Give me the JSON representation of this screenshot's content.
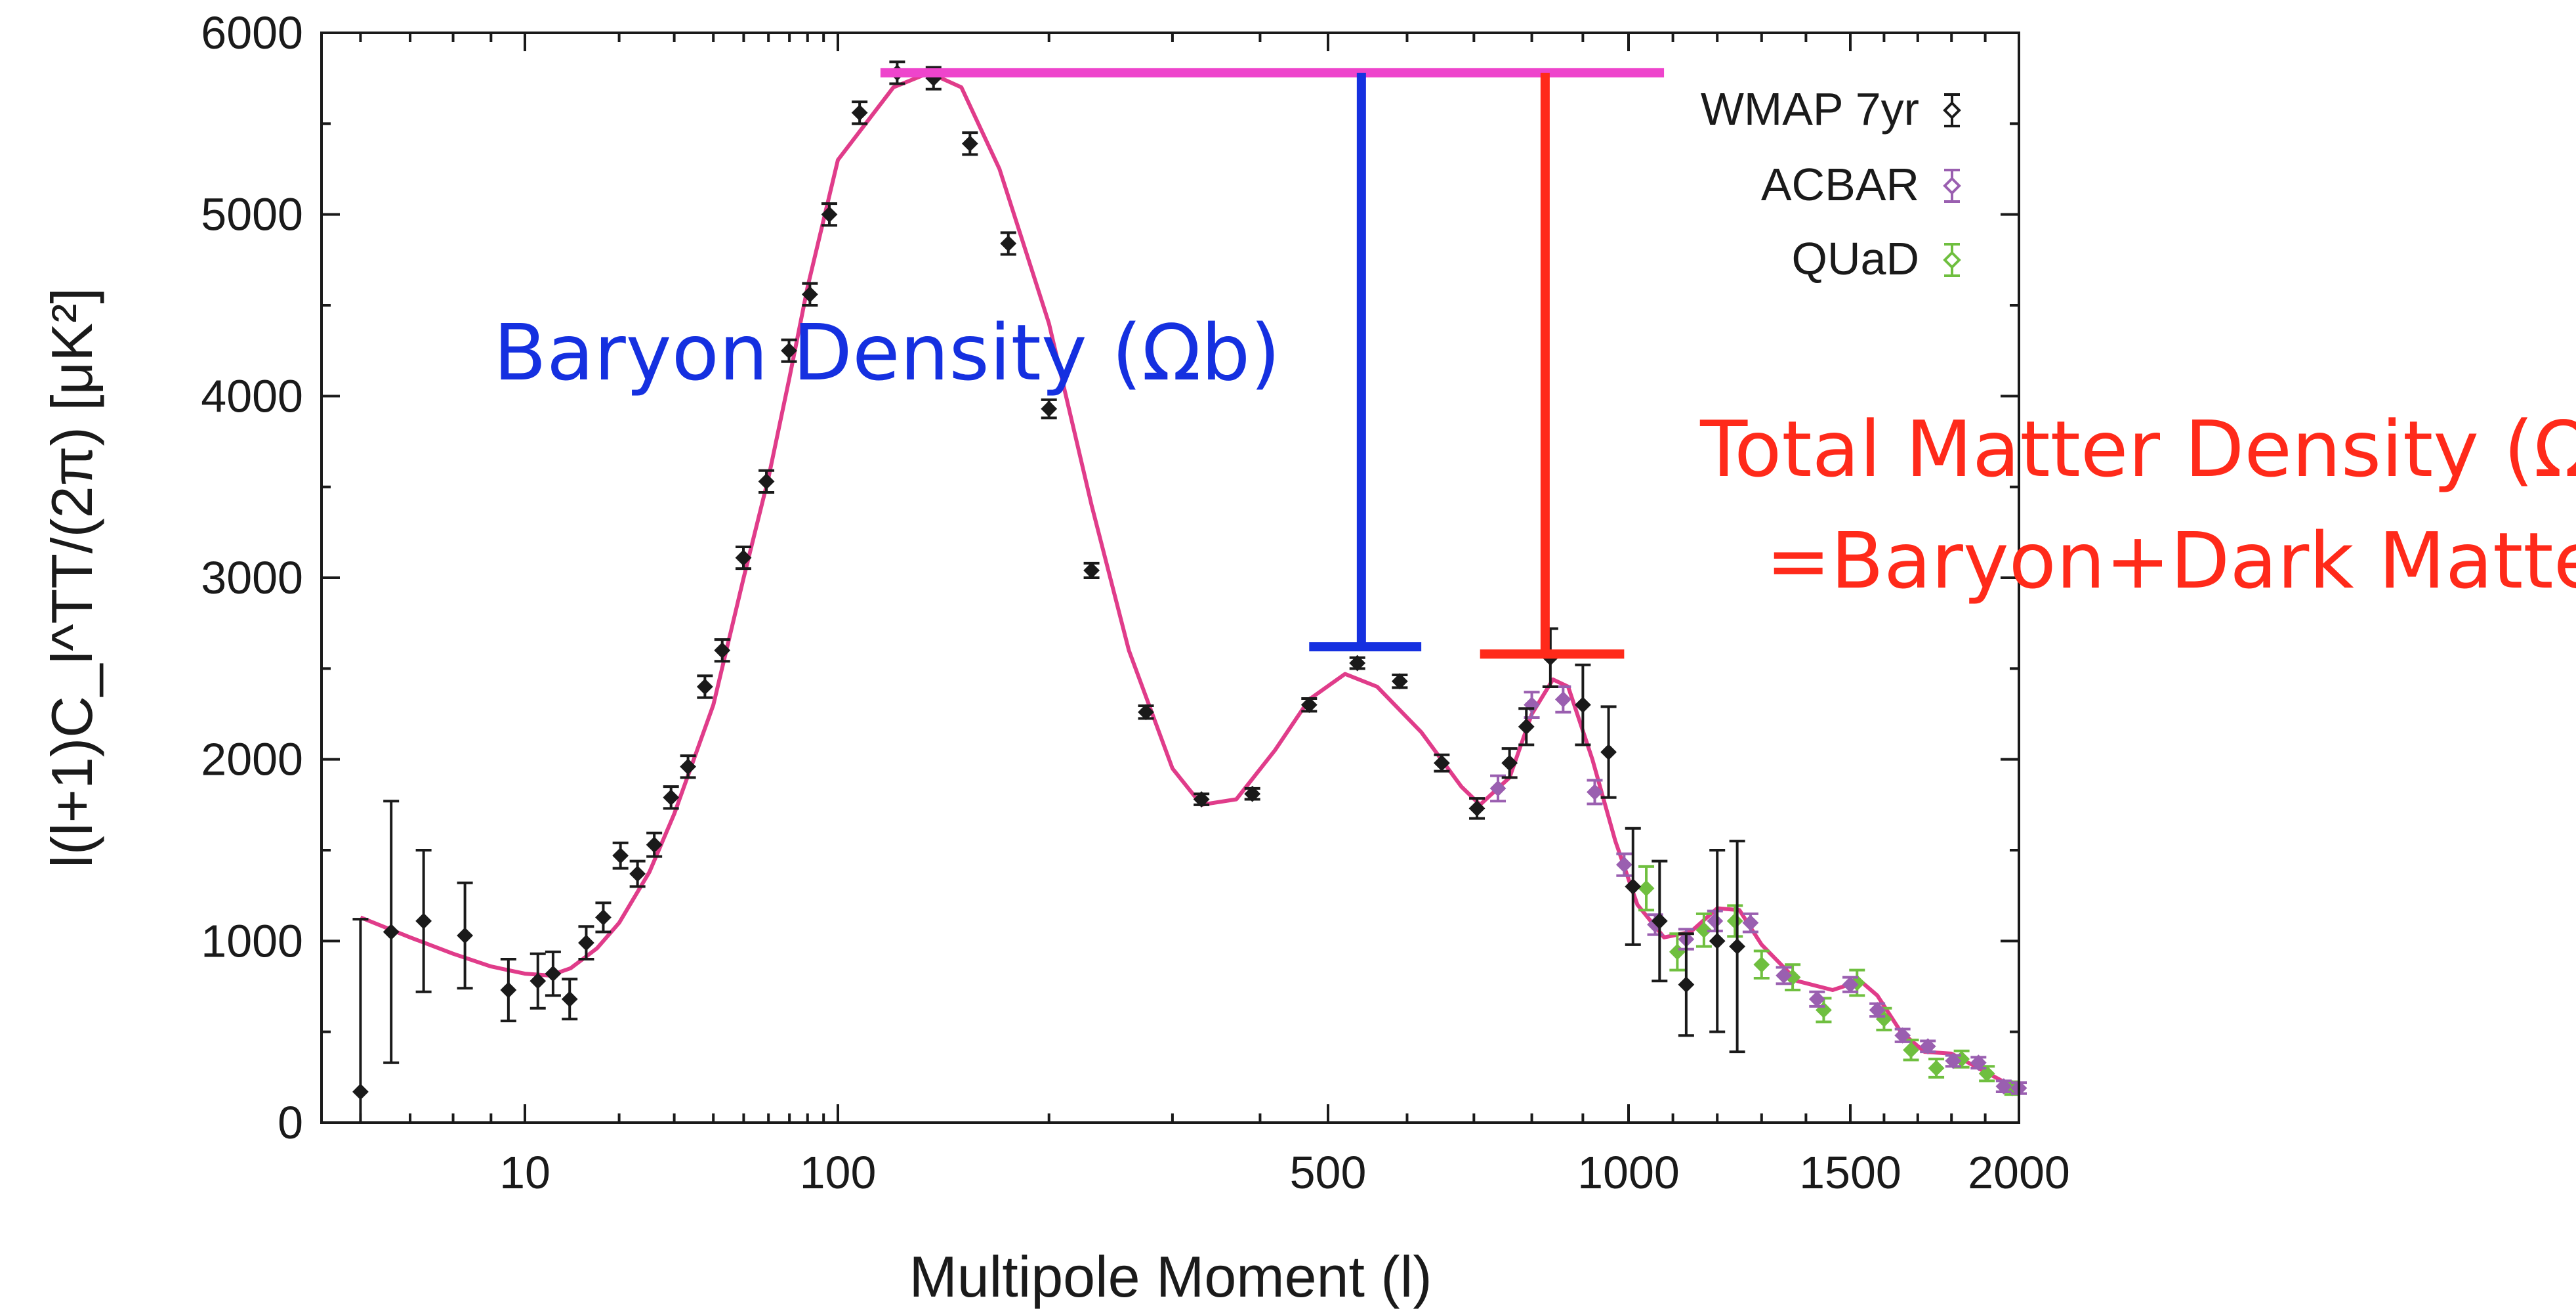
{
  "chart_data": {
    "type": "scatter",
    "title": "",
    "xlabel": "Multipole Moment (l)",
    "ylabel": "l(l+1)C_l^TT/(2π) [μK²]",
    "xscale": "custom: log below 100, stretched log 100-800, linear-ish above 800",
    "xlim": [
      5,
      2000
    ],
    "ylim": [
      0,
      6000
    ],
    "x_ticks": [
      10,
      100,
      500,
      1000,
      1500,
      2000
    ],
    "x_tick_labels": [
      "10",
      "100",
      "500",
      "1000",
      "1500",
      "2000"
    ],
    "y_ticks": [
      0,
      1000,
      2000,
      3000,
      4000,
      5000,
      6000
    ],
    "y_tick_labels": [
      "0",
      "1000",
      "2000",
      "3000",
      "4000",
      "5000",
      "6000"
    ],
    "legend_position": "top-right",
    "legend": [
      "WMAP 7yr",
      "ACBAR",
      "QUaD"
    ],
    "colors": {
      "wmap": "#1a1a1a",
      "acbar": "#9a5fb0",
      "quad": "#6fbf3f",
      "model": "#e03c8a",
      "baryon": "#1530e0",
      "matter": "#ff2a1a",
      "peak_bar": "#ee44cc"
    },
    "series": [
      {
        "name": "WMAP 7yr",
        "points": [
          [
            6,
            170,
            950
          ],
          [
            6.6,
            1050,
            720
          ],
          [
            7.3,
            1110,
            390
          ],
          [
            8.3,
            1030,
            290
          ],
          [
            9.5,
            730,
            170
          ],
          [
            11,
            780,
            150
          ],
          [
            12.3,
            820,
            120
          ],
          [
            13.9,
            680,
            110
          ],
          [
            15.7,
            990,
            90
          ],
          [
            17.8,
            1130,
            80
          ],
          [
            20.2,
            1470,
            70
          ],
          [
            22.9,
            1370,
            70
          ],
          [
            25.9,
            1530,
            65
          ],
          [
            29.3,
            1790,
            60
          ],
          [
            33.2,
            1960,
            60
          ],
          [
            37.6,
            2400,
            60
          ],
          [
            42.7,
            2600,
            60
          ],
          [
            49.9,
            3110,
            60
          ],
          [
            59.1,
            3530,
            60
          ],
          [
            69.8,
            4250,
            60
          ],
          [
            81.4,
            4560,
            60
          ],
          [
            93.9,
            5000,
            60
          ],
          [
            107.4,
            5560,
            60
          ],
          [
            121.5,
            5780,
            60
          ],
          [
            136.9,
            5750,
            60
          ],
          [
            154.3,
            5390,
            60
          ],
          [
            175,
            4840,
            60
          ],
          [
            200,
            3930,
            50
          ],
          [
            230,
            3040,
            40
          ],
          [
            275,
            2260,
            35
          ],
          [
            330,
            1780,
            30
          ],
          [
            390,
            1810,
            30
          ],
          [
            470,
            2300,
            35
          ],
          [
            535,
            2530,
            30
          ],
          [
            590,
            2430,
            35
          ],
          [
            650,
            1980,
            45
          ],
          [
            705,
            1730,
            55
          ],
          [
            760,
            1980,
            80
          ],
          [
            790,
            2180,
            100
          ],
          [
            835,
            2560,
            160
          ],
          [
            900,
            2300,
            220
          ],
          [
            955,
            2040,
            250
          ],
          [
            1010,
            1300,
            320
          ],
          [
            1070,
            1110,
            330
          ],
          [
            1130,
            760,
            280
          ],
          [
            1200,
            1000,
            500
          ],
          [
            1245,
            970,
            580
          ]
        ]
      },
      {
        "name": "ACBAR",
        "points": [
          [
            740,
            1840,
            70
          ],
          [
            800,
            2300,
            70
          ],
          [
            860,
            2330,
            70
          ],
          [
            925,
            1820,
            65
          ],
          [
            990,
            1420,
            60
          ],
          [
            1060,
            1090,
            55
          ],
          [
            1130,
            1010,
            55
          ],
          [
            1195,
            1110,
            55
          ],
          [
            1275,
            1100,
            50
          ],
          [
            1350,
            810,
            45
          ],
          [
            1425,
            680,
            40
          ],
          [
            1500,
            760,
            40
          ],
          [
            1580,
            620,
            35
          ],
          [
            1655,
            480,
            35
          ],
          [
            1730,
            420,
            30
          ],
          [
            1805,
            340,
            30
          ],
          [
            1880,
            330,
            30
          ],
          [
            1955,
            200,
            30
          ],
          [
            2000,
            190,
            30
          ]
        ]
      },
      {
        "name": "QUaD",
        "points": [
          [
            1040,
            1290,
            120
          ],
          [
            1110,
            940,
            100
          ],
          [
            1170,
            1060,
            90
          ],
          [
            1240,
            1110,
            85
          ],
          [
            1300,
            870,
            75
          ],
          [
            1370,
            800,
            70
          ],
          [
            1440,
            620,
            65
          ],
          [
            1520,
            770,
            70
          ],
          [
            1600,
            570,
            60
          ],
          [
            1680,
            400,
            55
          ],
          [
            1755,
            300,
            50
          ],
          [
            1830,
            350,
            45
          ],
          [
            1905,
            270,
            40
          ],
          [
            1980,
            190,
            35
          ]
        ]
      }
    ],
    "model_curve": [
      [
        6,
        1130
      ],
      [
        7,
        1020
      ],
      [
        8,
        930
      ],
      [
        9,
        860
      ],
      [
        10,
        820
      ],
      [
        12,
        810
      ],
      [
        14,
        850
      ],
      [
        17,
        960
      ],
      [
        20,
        1100
      ],
      [
        25,
        1380
      ],
      [
        30,
        1700
      ],
      [
        40,
        2300
      ],
      [
        50,
        3000
      ],
      [
        60,
        3550
      ],
      [
        70,
        4100
      ],
      [
        80,
        4600
      ],
      [
        100,
        5300
      ],
      [
        120,
        5700
      ],
      [
        135,
        5780
      ],
      [
        150,
        5700
      ],
      [
        170,
        5250
      ],
      [
        200,
        4400
      ],
      [
        230,
        3400
      ],
      [
        260,
        2600
      ],
      [
        300,
        1950
      ],
      [
        330,
        1750
      ],
      [
        370,
        1780
      ],
      [
        420,
        2050
      ],
      [
        470,
        2330
      ],
      [
        520,
        2470
      ],
      [
        560,
        2400
      ],
      [
        620,
        2150
      ],
      [
        680,
        1850
      ],
      [
        710,
        1750
      ],
      [
        760,
        1900
      ],
      [
        800,
        2250
      ],
      [
        840,
        2440
      ],
      [
        870,
        2400
      ],
      [
        920,
        2000
      ],
      [
        970,
        1550
      ],
      [
        1020,
        1200
      ],
      [
        1080,
        1020
      ],
      [
        1140,
        1050
      ],
      [
        1200,
        1180
      ],
      [
        1250,
        1170
      ],
      [
        1300,
        980
      ],
      [
        1380,
        780
      ],
      [
        1460,
        730
      ],
      [
        1530,
        780
      ],
      [
        1580,
        700
      ],
      [
        1650,
        500
      ],
      [
        1720,
        390
      ],
      [
        1800,
        380
      ],
      [
        1880,
        300
      ],
      [
        1950,
        230
      ],
      [
        2000,
        190
      ]
    ],
    "annotations": {
      "peak_line": {
        "y": 5780,
        "x_from": 115,
        "x_to": 1080
      },
      "baryon": {
        "label": "Baryon Density (Ωb)",
        "x": 540,
        "y_top": 5780,
        "y_bottom": 2620,
        "bar_x_from": 470,
        "bar_x_to": 620
      },
      "matter": {
        "label_line1": "Total Matter Density (Ωm)",
        "label_line2": "=Baryon+Dark Matter",
        "x": 825,
        "y_top": 5780,
        "y_bottom": 2580,
        "bar_x_from": 710,
        "bar_x_to": 990
      }
    }
  }
}
